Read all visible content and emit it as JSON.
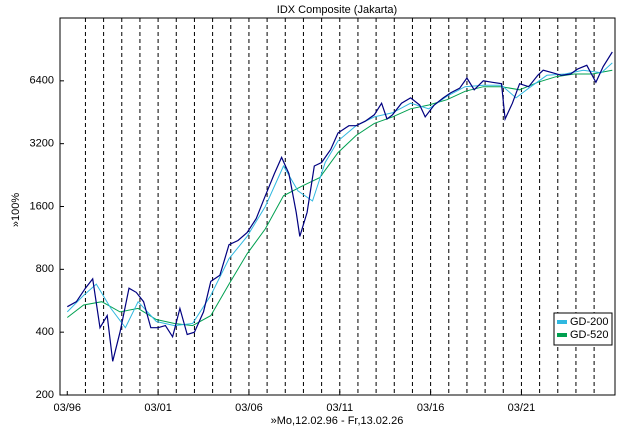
{
  "chart_data": {
    "type": "line",
    "title": "IDX Composite (Jakarta)",
    "x_label": "»Mo,12.02.96 - Fr,13.02.26",
    "y_label": "»100%",
    "log_y": true,
    "legend": "lower right",
    "grid": true,
    "xlim": [
      1995.7,
      2026.25
    ],
    "xticks": [
      {
        "value": 1996.1,
        "label": "03/96"
      },
      {
        "value": 2001.1,
        "label": "03/01"
      },
      {
        "value": 2006.1,
        "label": "03/06"
      },
      {
        "value": 2011.1,
        "label": "03/11"
      },
      {
        "value": 2016.1,
        "label": "03/16"
      },
      {
        "value": 2021.1,
        "label": "03/21"
      }
    ],
    "xminorticks": [
      1997.1,
      1998.1,
      1999.1,
      2000.1,
      2001.1,
      2002.1,
      2003.1,
      2004.1,
      2005.1,
      2006.1,
      2007.1,
      2008.1,
      2009.1,
      2010.1,
      2011.1,
      2012.1,
      2013.1,
      2014.1,
      2015.1,
      2016.1,
      2017.1,
      2018.1,
      2019.1,
      2020.1,
      2021.1,
      2022.1,
      2023.1,
      2024.1,
      2025.1
    ],
    "ylim": [
      200,
      12800
    ],
    "yticks": [
      200,
      400,
      800,
      1600,
      3200,
      6400
    ],
    "series": [
      {
        "color": "#000080",
        "x": [
          1996.1,
          1996.6,
          1997.1,
          1997.5,
          1997.9,
          1998.3,
          1998.6,
          1999.0,
          1999.5,
          1999.9,
          2000.3,
          2000.7,
          2001.1,
          2001.5,
          2001.9,
          2002.3,
          2002.7,
          2003.1,
          2003.6,
          2004.0,
          2004.5,
          2005.0,
          2005.5,
          2006.0,
          2006.5,
          2007.0,
          2007.5,
          2007.9,
          2008.3,
          2008.7,
          2008.9,
          2009.3,
          2009.7,
          2010.1,
          2010.6,
          2011.0,
          2011.6,
          2012.0,
          2012.5,
          2013.0,
          2013.4,
          2013.7,
          2014.0,
          2014.5,
          2015.0,
          2015.5,
          2015.8,
          2016.3,
          2016.8,
          2017.2,
          2017.7,
          2018.1,
          2018.5,
          2019.0,
          2019.5,
          2020.0,
          2020.2,
          2020.6,
          2021.0,
          2021.5,
          2022.0,
          2022.3,
          2022.8,
          2023.3,
          2023.8,
          2024.2,
          2024.7,
          2025.2,
          2025.6,
          2026.1
        ],
        "values": [
          530,
          560,
          650,
          720,
          420,
          480,
          290,
          400,
          650,
          620,
          560,
          420,
          420,
          430,
          380,
          520,
          390,
          400,
          500,
          700,
          750,
          1050,
          1100,
          1200,
          1400,
          1800,
          2300,
          2750,
          2300,
          1500,
          1150,
          1500,
          2500,
          2600,
          3000,
          3600,
          3900,
          3900,
          4100,
          4400,
          5000,
          4200,
          4400,
          5000,
          5300,
          4900,
          4300,
          4900,
          5300,
          5600,
          5900,
          6600,
          5800,
          6400,
          6300,
          6200,
          4200,
          5000,
          6200,
          6000,
          6800,
          7200,
          7000,
          6800,
          6900,
          7300,
          7600,
          6300,
          7500,
          8800
        ]
      },
      {
        "name": "GD-200",
        "color": "#30b8e0",
        "x": [
          1996.1,
          1997.0,
          1997.7,
          1998.5,
          1999.3,
          2000.0,
          2001.0,
          2002.0,
          2003.0,
          2004.0,
          2005.0,
          2006.0,
          2007.0,
          2008.0,
          2008.8,
          2009.6,
          2010.3,
          2011.0,
          2012.0,
          2013.0,
          2014.0,
          2015.0,
          2016.0,
          2017.0,
          2018.0,
          2019.0,
          2020.0,
          2020.8,
          2021.5,
          2022.5,
          2023.5,
          2024.5,
          2025.5,
          2026.1
        ],
        "values": [
          500,
          600,
          680,
          520,
          420,
          560,
          450,
          430,
          440,
          600,
          900,
          1150,
          1600,
          2500,
          1900,
          1700,
          2600,
          3300,
          3900,
          4300,
          4500,
          5000,
          4700,
          5400,
          6000,
          6100,
          6100,
          5300,
          5900,
          6800,
          6900,
          7200,
          7000,
          7800
        ]
      },
      {
        "name": "GD-520",
        "color": "#00a050",
        "x": [
          1996.1,
          1997.0,
          1998.0,
          1999.0,
          2000.0,
          2001.0,
          2002.0,
          2003.0,
          2004.0,
          2005.0,
          2006.0,
          2007.0,
          2008.0,
          2009.0,
          2010.0,
          2011.0,
          2012.0,
          2013.0,
          2014.0,
          2015.0,
          2016.0,
          2017.0,
          2018.0,
          2019.0,
          2020.0,
          2021.0,
          2022.0,
          2023.0,
          2024.0,
          2025.0,
          2026.1
        ],
        "values": [
          470,
          540,
          560,
          500,
          520,
          460,
          440,
          430,
          480,
          680,
          950,
          1250,
          1800,
          2000,
          2200,
          2900,
          3500,
          4000,
          4300,
          4700,
          4900,
          5200,
          5700,
          6000,
          6000,
          5800,
          6300,
          6700,
          6900,
          6900,
          7200
        ]
      }
    ]
  }
}
